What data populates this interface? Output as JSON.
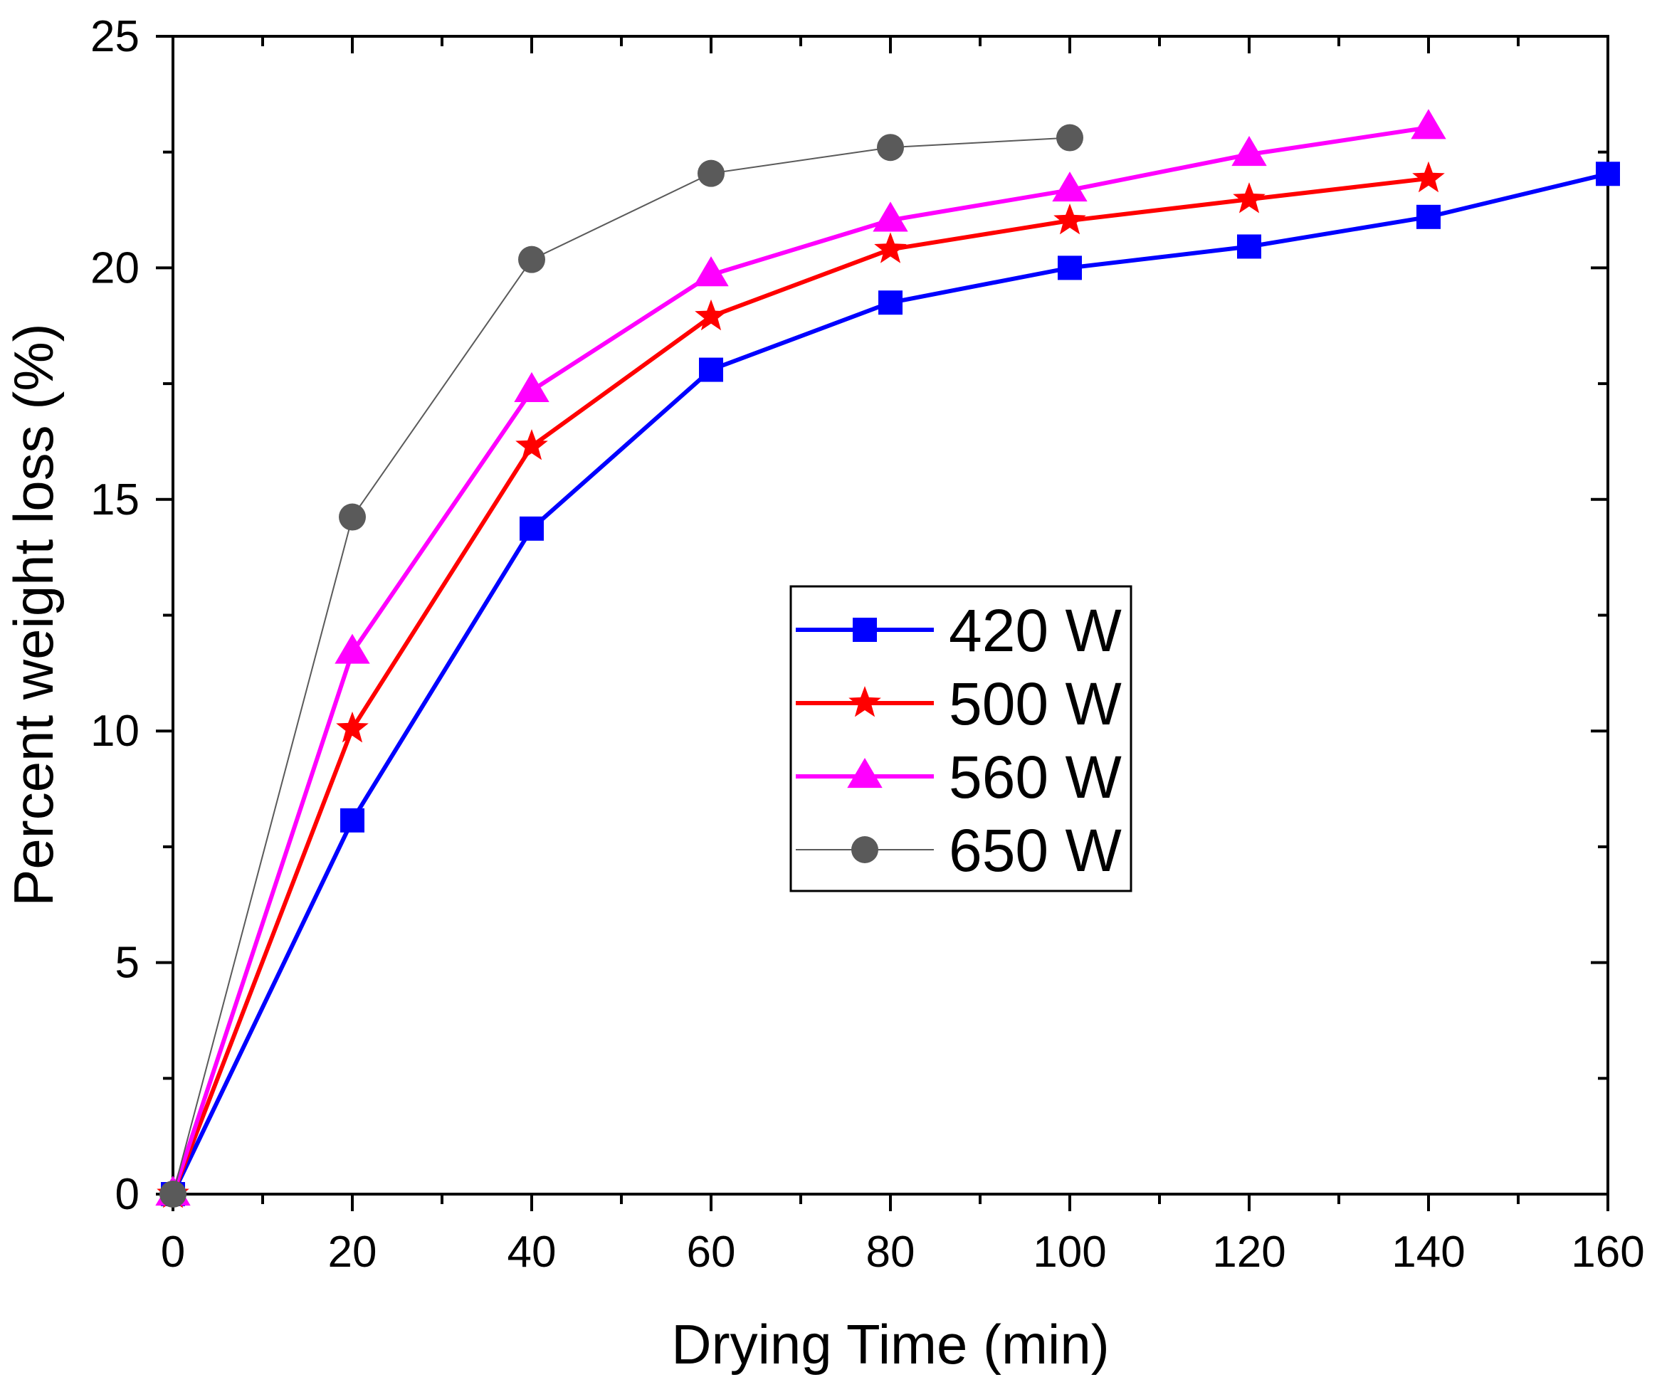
{
  "chart_data": {
    "type": "line",
    "title": "",
    "xlabel": "Drying Time (min)",
    "ylabel": "Percent weight loss (%)",
    "xlim": [
      0,
      160
    ],
    "ylim": [
      0,
      25
    ],
    "xticks": [
      0,
      20,
      40,
      60,
      80,
      100,
      120,
      140,
      160
    ],
    "yticks": [
      0,
      5,
      10,
      15,
      20,
      25
    ],
    "grid": false,
    "legend_position": "center",
    "series": [
      {
        "name": "420 W",
        "color": "#0000ff",
        "marker": "square",
        "x": [
          0,
          20,
          40,
          60,
          80,
          100,
          120,
          140,
          160
        ],
        "values": [
          0,
          8.07,
          14.37,
          17.8,
          19.25,
          20.0,
          20.46,
          21.1,
          22.03
        ]
      },
      {
        "name": "500 W",
        "color": "#ff0000",
        "marker": "star",
        "x": [
          0,
          20,
          40,
          60,
          80,
          100,
          120,
          140
        ],
        "values": [
          0,
          10.05,
          16.15,
          18.95,
          20.4,
          21.02,
          21.48,
          21.93
        ]
      },
      {
        "name": "560 W",
        "color": "#ff00ff",
        "marker": "triangle",
        "x": [
          0,
          20,
          40,
          60,
          80,
          100,
          120,
          140
        ],
        "values": [
          0,
          11.7,
          17.35,
          19.85,
          21.03,
          21.68,
          22.45,
          23.03
        ]
      },
      {
        "name": "650 W",
        "color": "#5a5a5a",
        "marker": "circle",
        "x": [
          0,
          20,
          40,
          60,
          80,
          100
        ],
        "values": [
          0,
          14.62,
          20.18,
          22.04,
          22.6,
          22.81
        ]
      }
    ]
  }
}
